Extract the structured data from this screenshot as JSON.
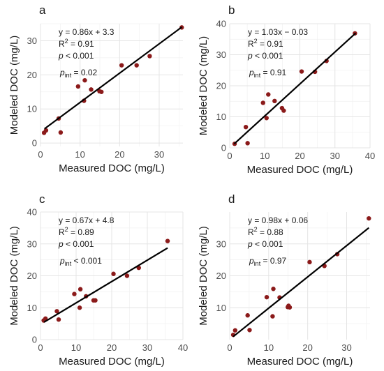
{
  "colors": {
    "point": "#8b1a1a",
    "fit_line": "#000000",
    "grid": "#e4e4e4"
  },
  "chart_data": [
    {
      "panel": "a",
      "type": "scatter",
      "xlabel": "Measured DOC (mg/L)",
      "ylabel": "Modeled DOC (mg/L)",
      "xlim": [
        0,
        36
      ],
      "ylim": [
        -1,
        35
      ],
      "xticks": [
        0,
        10,
        20,
        30
      ],
      "yticks": [
        0,
        10,
        20,
        30
      ],
      "points": {
        "x": [
          0.9,
          1.4,
          4.6,
          5.1,
          9.5,
          11.0,
          11.2,
          12.8,
          14.9,
          15.4,
          20.5,
          24.3,
          27.6,
          35.7
        ],
        "y": [
          3.0,
          3.7,
          7.2,
          3.1,
          16.6,
          12.4,
          18.4,
          15.7,
          15.2,
          15.0,
          22.8,
          22.8,
          25.5,
          33.9
        ]
      },
      "fit": {
        "slope": 0.86,
        "intercept": 3.3,
        "x_range": [
          1,
          35.7
        ]
      },
      "annotations": {
        "equation": "y = 0.86x + 3.3",
        "r2_prefix": "R",
        "r2_sup": "2",
        "r2_value": " = 0.91",
        "p": "p",
        "p_value": " < 0.001",
        "pint": "p",
        "pint_sub": "int",
        "pint_value": " = 0.02"
      }
    },
    {
      "panel": "b",
      "type": "scatter",
      "xlabel": "Measured DOC (mg/L)",
      "ylabel": "Modeled DOC (mg/L)",
      "xlim": [
        0,
        40
      ],
      "ylim": [
        0,
        40
      ],
      "xticks": [
        0,
        10,
        20,
        30,
        40
      ],
      "yticks": [
        0,
        10,
        20,
        30,
        40
      ],
      "points": {
        "x": [
          1.4,
          4.6,
          5.1,
          9.5,
          10.5,
          11.0,
          12.8,
          14.9,
          15.4,
          20.5,
          24.3,
          27.6,
          35.7
        ],
        "y": [
          1.3,
          6.7,
          1.5,
          14.5,
          9.6,
          17.2,
          15.1,
          12.8,
          12.0,
          24.6,
          24.5,
          28.0,
          36.9
        ]
      },
      "fit": {
        "slope": 1.03,
        "intercept": -0.03,
        "x_range": [
          1.3,
          35.9
        ]
      },
      "annotations": {
        "equation": "y = 1.03x − 0.03",
        "r2_prefix": "R",
        "r2_sup": "2",
        "r2_value": " = 0.91",
        "p": "p",
        "p_value": " < 0.001",
        "pint": "p",
        "pint_sub": "int",
        "pint_value": " = 0.91"
      }
    },
    {
      "panel": "c",
      "type": "scatter",
      "xlabel": "Measured DOC (mg/L)",
      "ylabel": "Modeled DOC (mg/L)",
      "xlim": [
        0,
        40
      ],
      "ylim": [
        0,
        40
      ],
      "xticks": [
        0,
        10,
        20,
        30,
        40
      ],
      "yticks": [
        0,
        10,
        20,
        30,
        40
      ],
      "points": {
        "x": [
          0.9,
          1.4,
          4.6,
          5.1,
          9.5,
          11.0,
          11.2,
          12.8,
          14.9,
          15.4,
          20.5,
          24.3,
          27.6,
          35.7
        ],
        "y": [
          6.0,
          6.6,
          8.9,
          6.3,
          14.3,
          10.0,
          15.8,
          13.6,
          12.3,
          12.3,
          20.6,
          20.0,
          22.5,
          30.9
        ]
      },
      "fit": {
        "slope": 0.67,
        "intercept": 4.8,
        "x_range": [
          1,
          35.7
        ]
      },
      "annotations": {
        "equation": "y = 0.67x + 4.8",
        "r2_prefix": "R",
        "r2_sup": "2",
        "r2_value": " = 0.89",
        "p": "p",
        "p_value": " < 0.001",
        "pint": "p",
        "pint_sub": "int",
        "pint_value": " < 0.001"
      }
    },
    {
      "panel": "d",
      "type": "scatter",
      "xlabel": "Measured DOC (mg/L)",
      "ylabel": "Modeled DOC (mg/L)",
      "xlim": [
        0,
        36
      ],
      "ylim": [
        0,
        40
      ],
      "xticks": [
        0,
        10,
        20,
        30
      ],
      "yticks": [
        10,
        20,
        30
      ],
      "points": {
        "x": [
          0.9,
          1.4,
          4.6,
          5.1,
          9.5,
          11.0,
          11.2,
          12.8,
          14.9,
          15.1,
          15.4,
          20.5,
          24.3,
          27.6,
          35.7
        ],
        "y": [
          1.5,
          2.9,
          7.6,
          3.0,
          13.3,
          7.3,
          15.9,
          13.2,
          10.2,
          10.6,
          10.1,
          24.3,
          23.1,
          26.8,
          38.0
        ]
      },
      "fit": {
        "slope": 0.98,
        "intercept": 0.06,
        "x_range": [
          0.9,
          35.7
        ]
      },
      "annotations": {
        "equation": "y = 0.98x + 0.06",
        "r2_prefix": "R",
        "r2_sup": "2",
        "r2_value": " = 0.88",
        "p": "p",
        "p_value": " < 0.001",
        "pint": "p",
        "pint_sub": "int",
        "pint_value": " = 0.97"
      }
    }
  ]
}
